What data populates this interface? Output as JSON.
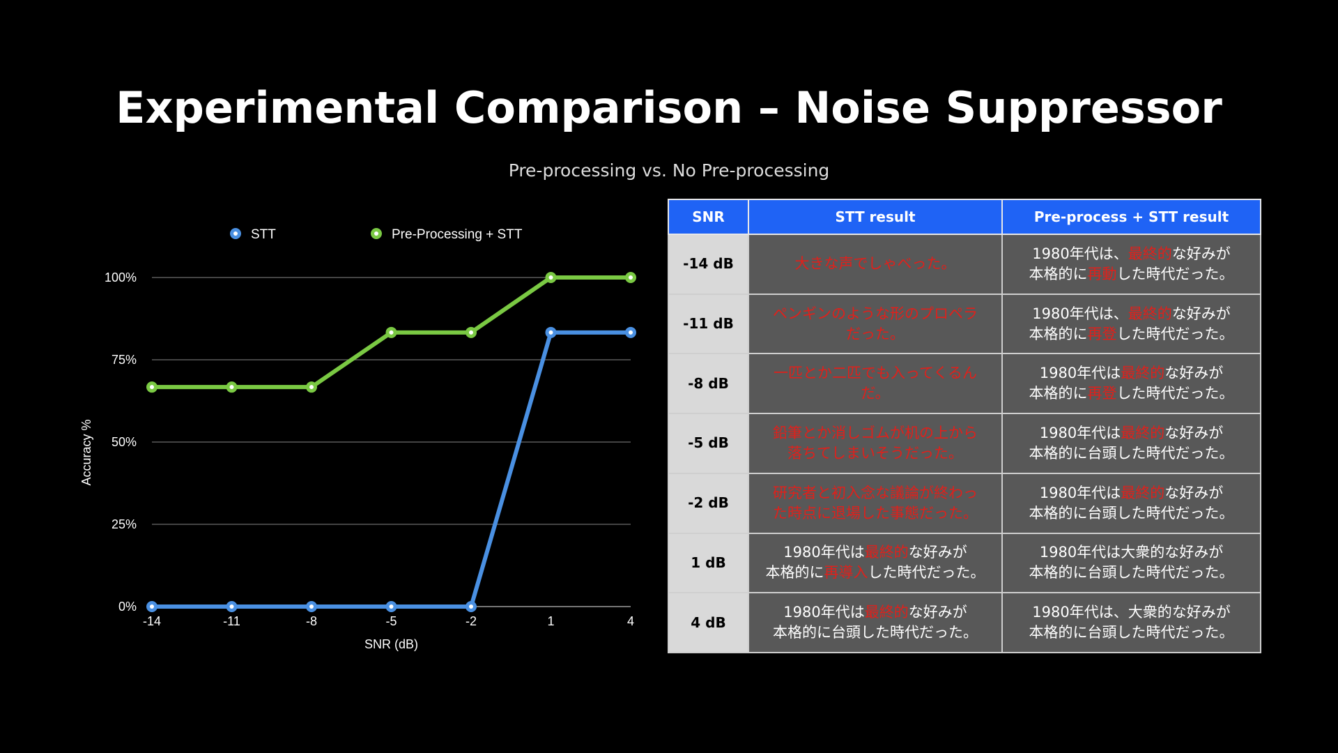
{
  "slide": {
    "title": "Experimental Comparison – Noise Suppressor",
    "subtitle": "Pre-processing vs. No Pre-processing"
  },
  "chart_data": {
    "type": "line",
    "x": [
      -14,
      -11,
      -8,
      -5,
      -2,
      1,
      4
    ],
    "x_tick_labels": [
      "-14",
      "-11",
      "-8",
      "-5",
      "-2",
      "1",
      "4"
    ],
    "y_ticks": [
      0,
      25,
      50,
      75,
      100
    ],
    "y_tick_labels": [
      "0%",
      "25%",
      "50%",
      "75%",
      "100%"
    ],
    "ylim": [
      0,
      100
    ],
    "xlabel": "SNR (dB)",
    "ylabel": "Accuracy %",
    "grid": true,
    "legend_position": "top",
    "series": [
      {
        "name": "STT",
        "color": "#4a90e2",
        "values": [
          0,
          0,
          0,
          0,
          0,
          83.3,
          83.3
        ]
      },
      {
        "name": "Pre-Processing + STT",
        "color": "#7ac943",
        "values": [
          66.7,
          66.7,
          66.7,
          83.3,
          83.3,
          100,
          100
        ]
      }
    ]
  },
  "table": {
    "headers": [
      "SNR",
      "STT result",
      "Pre-process + STT result"
    ],
    "rows": [
      {
        "snr": "-14 dB",
        "stt": [
          {
            "t": "大きな声でしゃべった。",
            "e": true
          }
        ],
        "pre": [
          {
            "t": "1980年代は、"
          },
          {
            "t": "最終的",
            "e": true
          },
          {
            "t": "な好みが\n本格的に"
          },
          {
            "t": "再動",
            "e": true
          },
          {
            "t": "した時代だった。"
          }
        ]
      },
      {
        "snr": "-11 dB",
        "stt": [
          {
            "t": "ペンギンのような形のプロペラ\nだった。",
            "e": true
          }
        ],
        "pre": [
          {
            "t": "1980年代は、"
          },
          {
            "t": "最終的",
            "e": true
          },
          {
            "t": "な好みが\n本格的に"
          },
          {
            "t": "再登",
            "e": true
          },
          {
            "t": "した時代だった。"
          }
        ]
      },
      {
        "snr": "-8 dB",
        "stt": [
          {
            "t": "一匹とか二匹でも入ってくるん\nだ。",
            "e": true
          }
        ],
        "pre": [
          {
            "t": "1980年代は"
          },
          {
            "t": "最終的",
            "e": true
          },
          {
            "t": "な好みが\n本格的に"
          },
          {
            "t": "再登",
            "e": true
          },
          {
            "t": "した時代だった。"
          }
        ]
      },
      {
        "snr": "-5 dB",
        "stt": [
          {
            "t": "鉛筆とか消しゴムが机の上から\n落ちてしまいそうだった。",
            "e": true
          }
        ],
        "pre": [
          {
            "t": "1980年代は"
          },
          {
            "t": "最終的",
            "e": true
          },
          {
            "t": "な好みが\n本格的に台頭した時代だった。"
          }
        ]
      },
      {
        "snr": "-2 dB",
        "stt": [
          {
            "t": "研究者と初入念な議論が終わっ\nた時点に退場した事態だった。",
            "e": true
          }
        ],
        "pre": [
          {
            "t": "1980年代は"
          },
          {
            "t": "最終的",
            "e": true
          },
          {
            "t": "な好みが\n本格的に台頭した時代だった。"
          }
        ]
      },
      {
        "snr": "1 dB",
        "stt": [
          {
            "t": "1980年代は"
          },
          {
            "t": "最終的",
            "e": true
          },
          {
            "t": "な好みが\n本格的に"
          },
          {
            "t": "再導入",
            "e": true
          },
          {
            "t": "した時代だった。"
          }
        ],
        "pre": [
          {
            "t": "1980年代は大衆的な好みが\n本格的に台頭した時代だった。"
          }
        ]
      },
      {
        "snr": "4 dB",
        "stt": [
          {
            "t": "1980年代は"
          },
          {
            "t": "最終的",
            "e": true
          },
          {
            "t": "な好みが\n本格的に台頭した時代だった。"
          }
        ],
        "pre": [
          {
            "t": "1980年代は、大衆的な好みが\n本格的に台頭した時代だった。"
          }
        ]
      }
    ]
  }
}
